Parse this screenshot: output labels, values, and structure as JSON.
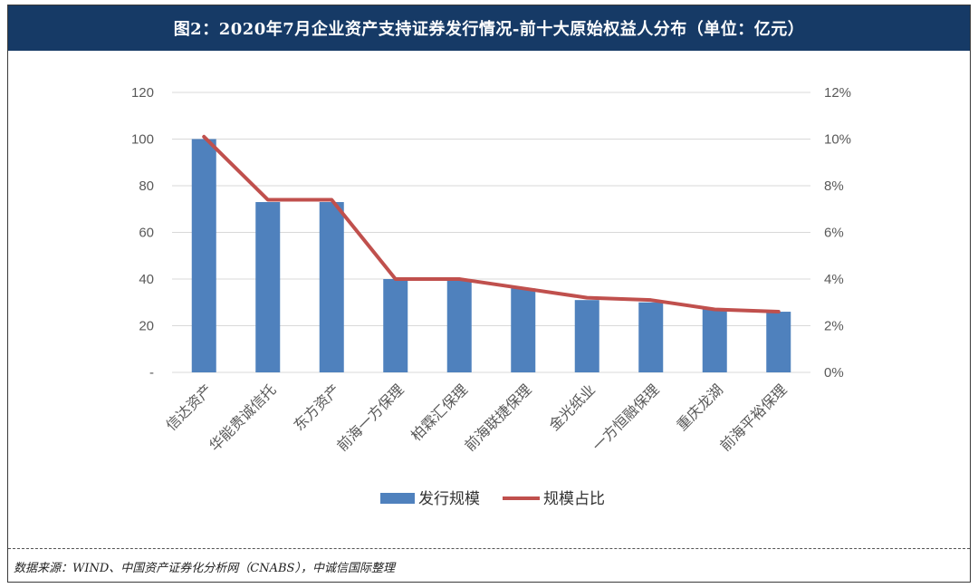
{
  "header": {
    "title": "图2：2020年7月企业资产支持证券发行情况-前十大原始权益人分布（单位：亿元）"
  },
  "chart_data": {
    "type": "bar",
    "title": "图2：2020年7月企业资产支持证券发行情况-前十大原始权益人分布（单位：亿元）",
    "categories": [
      "信达资产",
      "华能贵诚信托",
      "东方资产",
      "前海一方保理",
      "柏霖汇保理",
      "前海联捷保理",
      "金光纸业",
      "一方恒融保理",
      "重庆龙湖",
      "前海平裕保理"
    ],
    "series": [
      {
        "name": "发行规模",
        "type": "bar",
        "axis": "left",
        "values": [
          100,
          73,
          73,
          40,
          40,
          36,
          31,
          30,
          27,
          26
        ]
      },
      {
        "name": "规模占比",
        "type": "line",
        "axis": "right",
        "values": [
          10.1,
          7.4,
          7.4,
          4.0,
          4.0,
          3.6,
          3.2,
          3.1,
          2.7,
          2.6
        ]
      }
    ],
    "colors": {
      "bar": "#4f81bd",
      "line": "#c0504d"
    },
    "yleft": {
      "min": 0,
      "max": 120,
      "ticks": [
        "-",
        "20",
        "40",
        "60",
        "80",
        "100",
        "120"
      ]
    },
    "yright": {
      "min": 0,
      "max": 12,
      "ticks": [
        "0%",
        "2%",
        "4%",
        "6%",
        "8%",
        "10%",
        "12%"
      ]
    },
    "gridlines": true,
    "legend_position": "bottom"
  },
  "footer": {
    "source": "数据来源：WIND、中国资产证券化分析网（CNABS），中诚信国际整理"
  }
}
